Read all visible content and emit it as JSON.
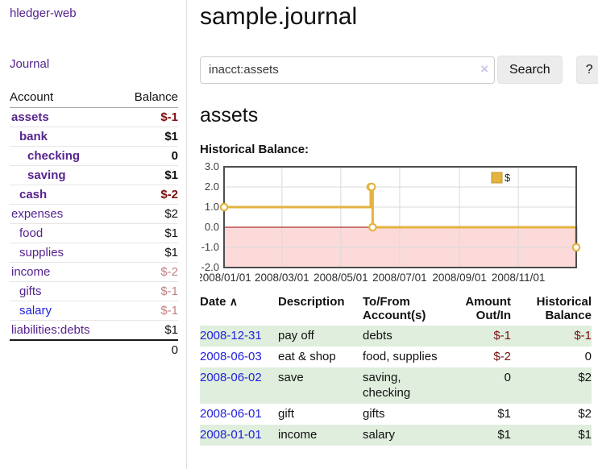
{
  "palette": {
    "link_purple": "#56248f",
    "link_blue": "#2222dd",
    "neg_strong": "#7d0e0e",
    "neg_soft": "#c08181",
    "text": "#111111",
    "row_green": "#dfeedd",
    "gold": "#e3b440",
    "gold_dark": "#c2962e",
    "pink": "#fcdada",
    "zero_line": "#990000",
    "grid": "#d9d9d9",
    "frame": "#4d4d4d"
  },
  "sidebar": {
    "brand": "hledger-web",
    "journal_link": "Journal",
    "headers": {
      "account": "Account",
      "balance": "Balance"
    },
    "accounts": [
      {
        "name": "assets",
        "depth": 1,
        "bold": true,
        "link": "purple",
        "balance": "$-1",
        "tone": "neg-strong"
      },
      {
        "name": "bank",
        "depth": 2,
        "bold": true,
        "link": "purple",
        "balance": "$1",
        "tone": "plain"
      },
      {
        "name": "checking",
        "depth": 3,
        "bold": true,
        "link": "purple",
        "balance": "0",
        "tone": "plain"
      },
      {
        "name": "saving",
        "depth": 3,
        "bold": true,
        "link": "purple",
        "balance": "$1",
        "tone": "plain"
      },
      {
        "name": "cash",
        "depth": 2,
        "bold": true,
        "link": "purple",
        "balance": "$-2",
        "tone": "neg-strong"
      },
      {
        "name": "expenses",
        "depth": 1,
        "bold": false,
        "link": "purple",
        "balance": "$2",
        "tone": "plain"
      },
      {
        "name": "food",
        "depth": 2,
        "bold": false,
        "link": "purple",
        "balance": "$1",
        "tone": "plain"
      },
      {
        "name": "supplies",
        "depth": 2,
        "bold": false,
        "link": "purple",
        "balance": "$1",
        "tone": "plain"
      },
      {
        "name": "income",
        "depth": 1,
        "bold": false,
        "link": "purple",
        "balance": "$-2",
        "tone": "neg-soft"
      },
      {
        "name": "gifts",
        "depth": 2,
        "bold": false,
        "link": "purple",
        "balance": "$-1",
        "tone": "neg-soft"
      },
      {
        "name": "salary",
        "depth": 2,
        "bold": false,
        "link": "blue",
        "balance": "$-1",
        "tone": "neg-soft"
      },
      {
        "name": "liabilities:debts",
        "depth": 1,
        "bold": false,
        "link": "purple",
        "balance": "$1",
        "tone": "plain"
      }
    ],
    "total": "0"
  },
  "main": {
    "title": "sample.journal",
    "search": {
      "value": "inacct:assets",
      "clear_icon": "×",
      "search_label": "Search",
      "help_label": "?"
    },
    "account_heading": "assets",
    "chart_heading": "Historical Balance:"
  },
  "chart_data": {
    "type": "line",
    "step": true,
    "title": "Historical Balance:",
    "legend": {
      "label": "$",
      "position": "top-right"
    },
    "xlim_days": [
      0,
      365
    ],
    "ylim": [
      -2,
      3
    ],
    "grid": true,
    "negative_region_shaded": true,
    "y_ticks": [
      {
        "label": "3.0",
        "value": 3
      },
      {
        "label": "2.0",
        "value": 2
      },
      {
        "label": "1.0",
        "value": 1
      },
      {
        "label": "0.0",
        "value": 0
      },
      {
        "label": "-1.0",
        "value": -1
      },
      {
        "label": "-2.0",
        "value": -2
      }
    ],
    "x_ticks": [
      {
        "label": "2008/01/01",
        "day": 0
      },
      {
        "label": "2008/03/01",
        "day": 60
      },
      {
        "label": "2008/05/01",
        "day": 121
      },
      {
        "label": "2008/07/01",
        "day": 182
      },
      {
        "label": "2008/09/01",
        "day": 244
      },
      {
        "label": "2008/11/01",
        "day": 305
      }
    ],
    "series": [
      {
        "name": "$",
        "points": [
          {
            "date": "2008-01-01",
            "day": 0,
            "value": 1
          },
          {
            "date": "2008-06-01",
            "day": 152,
            "value": 2
          },
          {
            "date": "2008-06-02",
            "day": 153,
            "value": 2
          },
          {
            "date": "2008-06-03",
            "day": 154,
            "value": 0
          },
          {
            "date": "2008-12-31",
            "day": 365,
            "value": -1
          }
        ]
      }
    ]
  },
  "register": {
    "headers": {
      "date": "Date",
      "sort_icon": "∧",
      "description": "Description",
      "accounts": "To/From\nAccount(s)",
      "amount": "Amount\nOut/In",
      "balance": "Historical\nBalance"
    },
    "rows": [
      {
        "date": "2008-12-31",
        "description": "pay off",
        "accounts": "debts",
        "amount": "$-1",
        "amount_tone": "neg",
        "balance": "$-1",
        "balance_tone": "neg",
        "shaded": true
      },
      {
        "date": "2008-06-03",
        "description": "eat & shop",
        "accounts": "food, supplies",
        "amount": "$-2",
        "amount_tone": "neg",
        "balance": "0",
        "balance_tone": "plain",
        "shaded": false
      },
      {
        "date": "2008-06-02",
        "description": "save",
        "accounts": "saving, checking",
        "amount": "0",
        "amount_tone": "plain",
        "balance": "$2",
        "balance_tone": "plain",
        "shaded": true
      },
      {
        "date": "2008-06-01",
        "description": "gift",
        "accounts": "gifts",
        "amount": "$1",
        "amount_tone": "plain",
        "balance": "$2",
        "balance_tone": "plain",
        "shaded": false
      },
      {
        "date": "2008-01-01",
        "description": "income",
        "accounts": "salary",
        "amount": "$1",
        "amount_tone": "plain",
        "balance": "$1",
        "balance_tone": "plain",
        "shaded": true
      }
    ]
  }
}
